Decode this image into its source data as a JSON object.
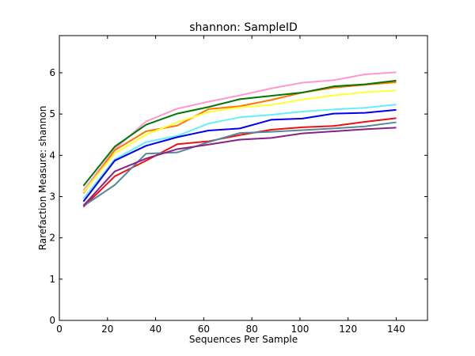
{
  "chart_data": {
    "type": "line",
    "title": "shannon: SampleID",
    "xlabel": "Sequences Per Sample",
    "ylabel": "Rarefaction Measure: shannon",
    "xlim": [
      0,
      153
    ],
    "ylim": [
      0,
      6.9
    ],
    "xticks": [
      "0",
      "20",
      "40",
      "60",
      "80",
      "100",
      "120",
      "140"
    ],
    "yticks": [
      "0",
      "1",
      "2",
      "3",
      "4",
      "5",
      "6"
    ],
    "grid": false,
    "legend": "none",
    "x": [
      10,
      23,
      36,
      49,
      62,
      75,
      88,
      101,
      114,
      127,
      140
    ],
    "series": [
      {
        "color": "#ff99cc",
        "values": [
          3.15,
          4.15,
          4.82,
          5.13,
          5.3,
          5.45,
          5.62,
          5.76,
          5.82,
          5.96,
          6.01
        ]
      },
      {
        "color": "#ff7700",
        "values": [
          3.08,
          4.12,
          4.58,
          4.72,
          5.12,
          5.19,
          5.34,
          5.52,
          5.64,
          5.71,
          5.77
        ]
      },
      {
        "color": "#007700",
        "values": [
          3.26,
          4.21,
          4.74,
          5.01,
          5.17,
          5.36,
          5.44,
          5.52,
          5.67,
          5.72,
          5.81
        ]
      },
      {
        "color": "#ffff33",
        "values": [
          3.1,
          4.05,
          4.5,
          4.8,
          5.05,
          5.16,
          5.22,
          5.35,
          5.45,
          5.53,
          5.57
        ]
      },
      {
        "color": "#66eeff",
        "values": [
          2.95,
          3.9,
          4.32,
          4.47,
          4.77,
          4.92,
          4.98,
          5.06,
          5.11,
          5.15,
          5.23
        ]
      },
      {
        "color": "#0000ee",
        "values": [
          2.88,
          3.87,
          4.23,
          4.44,
          4.6,
          4.65,
          4.86,
          4.89,
          5.01,
          5.03,
          5.1
        ]
      },
      {
        "color": "#ee1111",
        "values": [
          2.75,
          3.49,
          3.87,
          4.27,
          4.34,
          4.49,
          4.62,
          4.68,
          4.71,
          4.81,
          4.9
        ]
      },
      {
        "color": "#558899",
        "values": [
          2.77,
          3.28,
          4.04,
          4.07,
          4.32,
          4.54,
          4.57,
          4.61,
          4.65,
          4.7,
          4.8
        ]
      },
      {
        "color": "#882288",
        "values": [
          2.78,
          3.61,
          3.92,
          4.15,
          4.26,
          4.38,
          4.42,
          4.53,
          4.58,
          4.63,
          4.67
        ]
      }
    ]
  }
}
